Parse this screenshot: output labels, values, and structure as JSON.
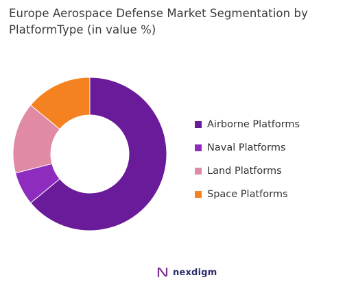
{
  "title": "Europe Aerospace Defense Market Segmentation by PlatformType (in value %)",
  "chart_data": {
    "type": "pie",
    "variant": "donut",
    "title": "Europe Aerospace Defense Market Segmentation by PlatformType (in value %)",
    "legend_position": "right",
    "series": [
      {
        "name": "Airborne Platforms",
        "value": 64,
        "color": "#6a1b9a"
      },
      {
        "name": "Naval Platforms",
        "value": 7,
        "color": "#8e2cbf"
      },
      {
        "name": "Land Platforms",
        "value": 15,
        "color": "#e08aa3"
      },
      {
        "name": "Space Platforms",
        "value": 14,
        "color": "#f58220"
      }
    ]
  },
  "brand": {
    "name": "nexdigm",
    "logo_icon": "nexdigm-logo-icon",
    "logo_color": "#7b2d8e"
  }
}
